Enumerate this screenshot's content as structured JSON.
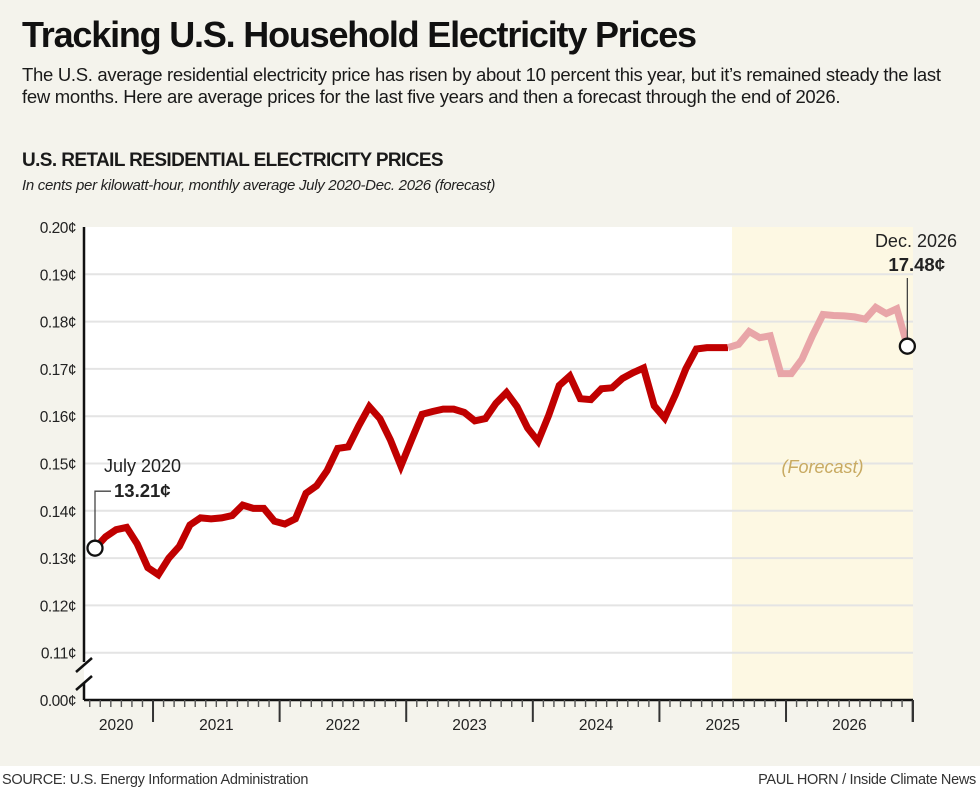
{
  "header": {
    "title": "Tracking U.S. Household Electricity Prices",
    "dek": "The U.S. average residential electricity price has risen by about 10 percent this year, but it’s remained steady the last few months. Here are average prices for the last five years and then a forecast through the end of 2026."
  },
  "footer": {
    "source": "SOURCE: U.S. Energy Information Administration",
    "credit": "PAUL HORN / Inside Climate News"
  },
  "colors": {
    "actual_line": "#c00000",
    "forecast_line": "#e8a5a8",
    "forecast_band": "#fdf8e3",
    "forecast_label": "#c8aa62",
    "background": "#f4f3ec",
    "plot_background": "#ffffff",
    "gridline": "#e4e4e4"
  },
  "chart_data": {
    "type": "line",
    "title": "U.S. RETAIL RESIDENTIAL ELECTRICITY PRICES",
    "subtitle": "In cents per kilowatt-hour, monthly average July 2020-Dec. 2026 (forecast)",
    "xlabel": "",
    "ylabel": "",
    "unit": "cents per kWh",
    "ylim": [
      11,
      20
    ],
    "axis_break": true,
    "y_ticks": [
      {
        "value": 20,
        "label": "0.20¢"
      },
      {
        "value": 19,
        "label": "0.19¢"
      },
      {
        "value": 18,
        "label": "0.18¢"
      },
      {
        "value": 17,
        "label": "0.17¢"
      },
      {
        "value": 16,
        "label": "0.16¢"
      },
      {
        "value": 15,
        "label": "0.15¢"
      },
      {
        "value": 14,
        "label": "0.14¢"
      },
      {
        "value": 13,
        "label": "0.13¢"
      },
      {
        "value": 12,
        "label": "0.12¢"
      },
      {
        "value": 11,
        "label": "0.11¢"
      },
      {
        "value": 0,
        "label": "0.00¢"
      }
    ],
    "x_range": [
      "2020-06",
      "2026-12"
    ],
    "x_tick_labels": [
      "2020",
      "2021",
      "2022",
      "2023",
      "2024",
      "2025",
      "2026"
    ],
    "grid": true,
    "forecast_start": "2025-07",
    "forecast_label": "(Forecast)",
    "series": [
      {
        "name": "Actual",
        "style": "solid-dark-red",
        "x": [
          "2020-07",
          "2020-08",
          "2020-09",
          "2020-10",
          "2020-11",
          "2020-12",
          "2021-01",
          "2021-02",
          "2021-03",
          "2021-04",
          "2021-05",
          "2021-06",
          "2021-07",
          "2021-08",
          "2021-09",
          "2021-10",
          "2021-11",
          "2021-12",
          "2022-01",
          "2022-02",
          "2022-03",
          "2022-04",
          "2022-05",
          "2022-06",
          "2022-07",
          "2022-08",
          "2022-09",
          "2022-10",
          "2022-11",
          "2022-12",
          "2023-01",
          "2023-02",
          "2023-03",
          "2023-04",
          "2023-05",
          "2023-06",
          "2023-07",
          "2023-08",
          "2023-09",
          "2023-10",
          "2023-11",
          "2023-12",
          "2024-01",
          "2024-02",
          "2024-03",
          "2024-04",
          "2024-05",
          "2024-06",
          "2024-07",
          "2024-08",
          "2024-09",
          "2024-10",
          "2024-11",
          "2024-12",
          "2025-01",
          "2025-02",
          "2025-03",
          "2025-04",
          "2025-05",
          "2025-06",
          "2025-07"
        ],
        "values": [
          13.21,
          13.45,
          13.6,
          13.65,
          13.3,
          12.8,
          12.65,
          13.0,
          13.25,
          13.7,
          13.85,
          13.83,
          13.85,
          13.9,
          14.12,
          14.05,
          14.05,
          13.78,
          13.72,
          13.83,
          14.37,
          14.53,
          14.85,
          15.32,
          15.35,
          15.8,
          16.2,
          15.95,
          15.5,
          14.95,
          15.5,
          16.04,
          16.1,
          16.15,
          16.15,
          16.08,
          15.9,
          15.95,
          16.27,
          16.5,
          16.2,
          15.75,
          15.47,
          16.02,
          16.65,
          16.85,
          16.37,
          16.35,
          16.58,
          16.6,
          16.8,
          16.92,
          17.02,
          16.22,
          15.96,
          16.45,
          17.0,
          17.42,
          17.45,
          17.45,
          17.45
        ]
      },
      {
        "name": "Forecast",
        "style": "solid-light-pink",
        "x": [
          "2025-07",
          "2025-08",
          "2025-09",
          "2025-10",
          "2025-11",
          "2025-12",
          "2026-01",
          "2026-02",
          "2026-03",
          "2026-04",
          "2026-05",
          "2026-06",
          "2026-07",
          "2026-08",
          "2026-09",
          "2026-10",
          "2026-11",
          "2026-12"
        ],
        "values": [
          17.45,
          17.52,
          17.79,
          17.66,
          17.7,
          16.9,
          16.9,
          17.2,
          17.7,
          18.15,
          18.13,
          18.12,
          18.1,
          18.05,
          18.3,
          18.17,
          18.27,
          17.48
        ]
      }
    ],
    "annotations": [
      {
        "date": "2020-07",
        "label": "July 2020",
        "value_label": "13.21¢",
        "value": 13.21
      },
      {
        "date": "2026-12",
        "label": "Dec. 2026",
        "value_label": "17.48¢",
        "value": 17.48
      }
    ]
  }
}
